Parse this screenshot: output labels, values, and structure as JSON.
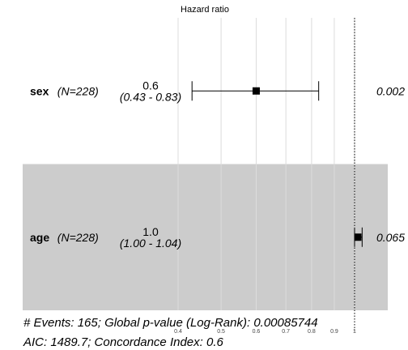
{
  "chart_data": {
    "type": "forest",
    "title": "Hazard ratio",
    "x_scale": "log",
    "xlim": [
      0.4,
      1.0
    ],
    "x_ticks": [
      0.4,
      0.5,
      0.6,
      0.7,
      0.8,
      0.9,
      1
    ],
    "x_tick_labels": [
      "0.4",
      "0.5",
      "0.6",
      "0.7",
      "0.8",
      "0.9",
      "1"
    ],
    "reference_line": 1,
    "grid": true,
    "rows": [
      {
        "variable": "sex",
        "n_label": "(N=228)",
        "hr": 0.6,
        "hr_label": "0.6",
        "lower": 0.43,
        "upper": 0.83,
        "ci_label": "(0.43 - 0.83)",
        "p_label": "0.002",
        "shaded": false
      },
      {
        "variable": "age",
        "n_label": "(N=228)",
        "hr": 1.0,
        "hr_label": "1.0",
        "lower": 1.0,
        "upper": 1.04,
        "ci_label": "(1.00 - 1.04)",
        "p_label": "0.065",
        "shaded": true
      }
    ],
    "footer": [
      "# Events: 165; Global p-value (Log-Rank): 0.00085744",
      "AIC: 1489.7; Concordance Index: 0.6"
    ],
    "colors": {
      "shade": "#cccccc",
      "grid": "#dcdcdc",
      "mark": "#000000"
    }
  }
}
